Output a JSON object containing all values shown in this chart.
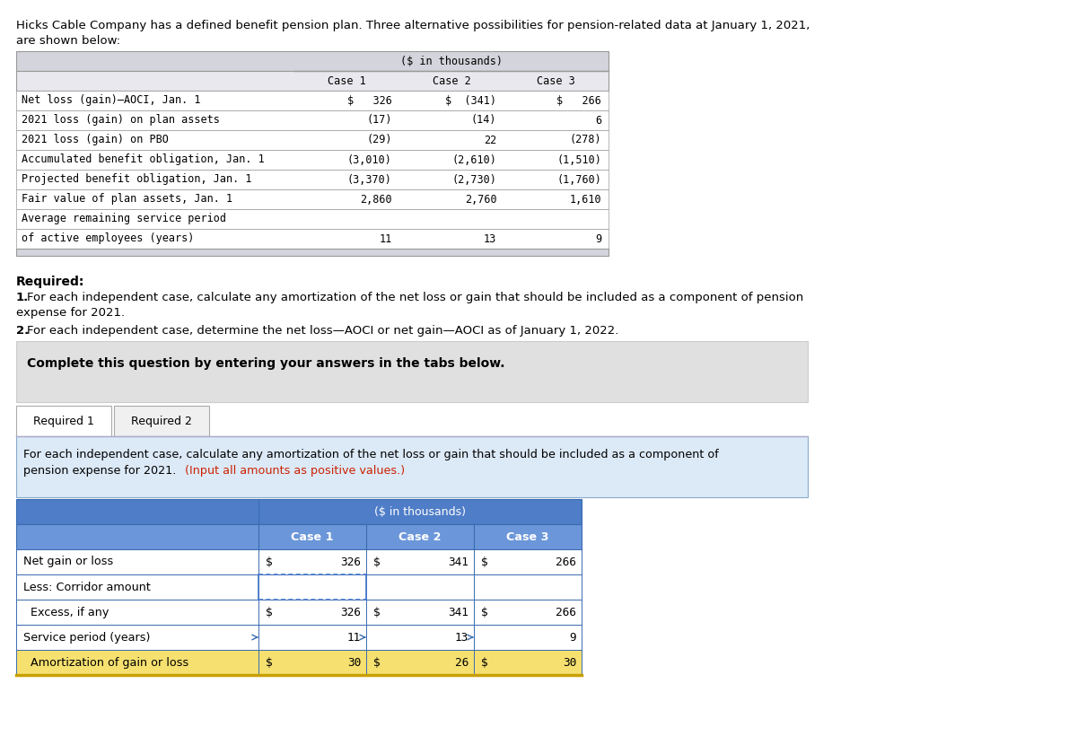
{
  "intro_line1": "Hicks Cable Company has a defined benefit pension plan. Three alternative possibilities for pension-related data at January 1, 2021,",
  "intro_line2": "are shown below:",
  "top_table": {
    "header_label": "($ in thousands)",
    "col_headers": [
      "Case 1",
      "Case 2",
      "Case 3"
    ],
    "rows": [
      {
        "label": "Net loss (gain)–AOCI, Jan. 1",
        "values": [
          "$   326",
          "$  (341)",
          "$   266"
        ]
      },
      {
        "label": "2021 loss (gain) on plan assets",
        "values": [
          "(17)",
          "(14)",
          "6"
        ]
      },
      {
        "label": "2021 loss (gain) on PBO",
        "values": [
          "(29)",
          "22",
          "(278)"
        ]
      },
      {
        "label": "Accumulated benefit obligation, Jan. 1",
        "values": [
          "(3,010)",
          "(2,610)",
          "(1,510)"
        ]
      },
      {
        "label": "Projected benefit obligation, Jan. 1",
        "values": [
          "(3,370)",
          "(2,730)",
          "(1,760)"
        ]
      },
      {
        "label": "Fair value of plan assets, Jan. 1",
        "values": [
          "2,860",
          "2,760",
          "1,610"
        ]
      },
      {
        "label": "Average remaining service period",
        "values": [
          "",
          "",
          ""
        ]
      },
      {
        "label": "of active employees (years)",
        "values": [
          "11",
          "13",
          "9"
        ]
      }
    ],
    "header_bg": "#d4d4dc",
    "col_header_bg": "#e8e8ee",
    "row_bg": "#ffffff",
    "border_color": "#999999"
  },
  "required_label": "Required:",
  "required_1_bold": "1.",
  "required_1_text": " For each independent case, calculate any amortization of the net loss or gain that should be included as a component of pension",
  "required_1_line2": "expense for 2021.",
  "required_2_bold": "2.",
  "required_2_text": " For each independent case, determine the net loss—AOCI or net gain—AOCI as of January 1, 2022.",
  "complete_box_text": "Complete this question by entering your answers in the tabs below.",
  "complete_box_bg": "#e0e0e0",
  "tab1_label": "Required 1",
  "tab2_label": "Required 2",
  "tab_desc_normal": "For each independent case, calculate any amortization of the net loss or gain that should be included as a component of\npension expense for 2021. ",
  "tab_desc_red": "(Input all amounts as positive values.)",
  "tab_desc_bg": "#dce9f7",
  "bottom_table": {
    "header_label": "($ in thousands)",
    "col_headers": [
      "Case 1",
      "Case 2",
      "Case 3"
    ],
    "header_bg": "#4f7dc8",
    "col_header_bg": "#6b96d9",
    "border_color": "#3a6bb0",
    "rows": [
      {
        "label": "Net gain or loss",
        "indent": 0,
        "vals_dollar": [
          true,
          true,
          true
        ],
        "values": [
          "326",
          "341",
          "266"
        ],
        "row_bg": "#ffffff",
        "last_bottom": false
      },
      {
        "label": "Less: Corridor amount",
        "indent": 0,
        "vals_dollar": [
          false,
          false,
          false
        ],
        "values": [
          "",
          "",
          ""
        ],
        "row_bg": "#ffffff",
        "last_bottom": false
      },
      {
        "label": "  Excess, if any",
        "indent": 1,
        "vals_dollar": [
          true,
          true,
          true
        ],
        "values": [
          "326",
          "341",
          "266"
        ],
        "row_bg": "#ffffff",
        "last_bottom": false
      },
      {
        "label": "Service period (years)",
        "indent": 0,
        "vals_dollar": [
          false,
          false,
          false
        ],
        "values": [
          "11",
          "13",
          "9"
        ],
        "row_bg": "#ffffff",
        "last_bottom": false
      },
      {
        "label": "  Amortization of gain or loss",
        "indent": 1,
        "vals_dollar": [
          true,
          true,
          true
        ],
        "values": [
          "30",
          "26",
          "30"
        ],
        "row_bg": "#f5e070",
        "last_bottom": true
      }
    ]
  }
}
